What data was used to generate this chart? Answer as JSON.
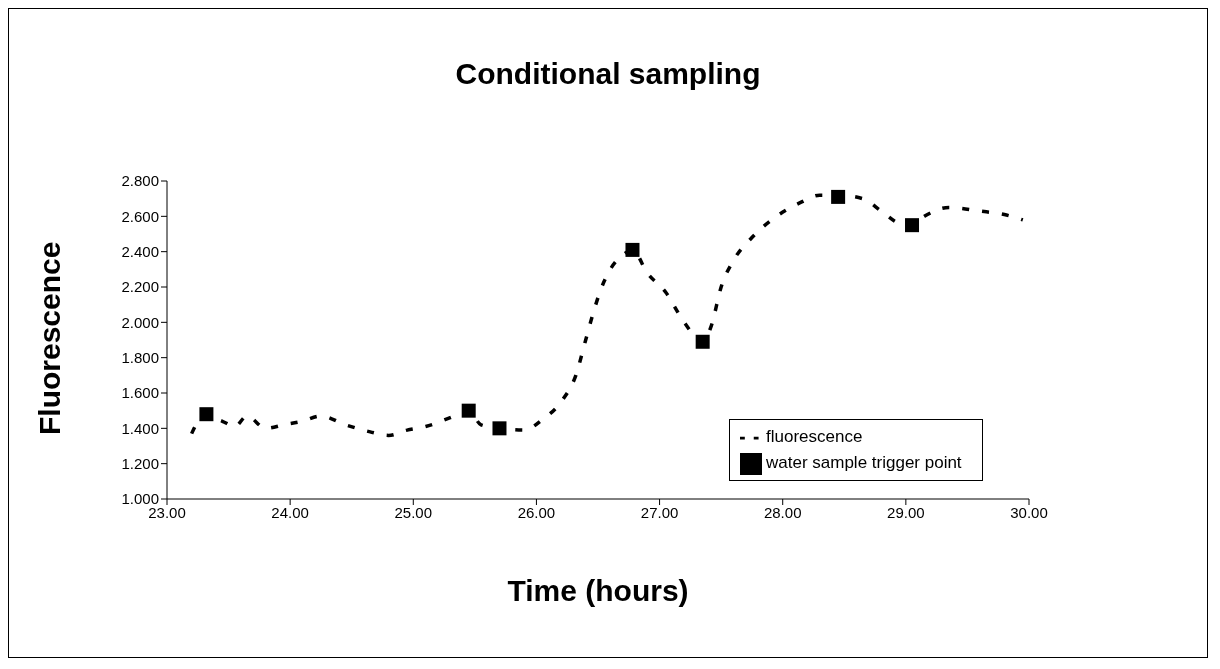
{
  "chart_data": {
    "type": "line",
    "title": "Conditional sampling",
    "xlabel": "Time (hours)",
    "ylabel": "Fluorescence",
    "xlim": [
      23,
      30
    ],
    "xticks": [
      {
        "value": 23,
        "label": "23.00"
      },
      {
        "value": 24,
        "label": "24.00"
      },
      {
        "value": 25,
        "label": "25.00"
      },
      {
        "value": 26,
        "label": "26.00"
      },
      {
        "value": 27,
        "label": "27.00"
      },
      {
        "value": 28,
        "label": "28.00"
      },
      {
        "value": 29,
        "label": "29.00"
      },
      {
        "value": 30,
        "label": "30.00"
      }
    ],
    "ylim": [
      1,
      2.8
    ],
    "yticks": [
      {
        "value": 1,
        "label": "1.000"
      },
      {
        "value": 1.2,
        "label": "1.200"
      },
      {
        "value": 1.4,
        "label": "1.400"
      },
      {
        "value": 1.6,
        "label": "1.600"
      },
      {
        "value": 1.8,
        "label": "1.800"
      },
      {
        "value": 2,
        "label": "2.000"
      },
      {
        "value": 2.2,
        "label": "2.200"
      },
      {
        "value": 2.4,
        "label": "2.400"
      },
      {
        "value": 2.6,
        "label": "2.600"
      },
      {
        "value": 2.8,
        "label": "2.800"
      }
    ],
    "grid": false,
    "legend": "bottom right",
    "series": [
      {
        "name": "fluorescence",
        "color": "#000000",
        "line_style": "dashed",
        "marker": "none",
        "x": [
          23.2,
          23.3,
          23.45,
          23.55,
          23.65,
          23.8,
          23.95,
          24.1,
          24.25,
          24.45,
          24.65,
          24.8,
          24.95,
          25.1,
          25.3,
          25.45,
          25.55,
          25.7,
          25.9,
          26.05,
          26.2,
          26.32,
          26.4,
          26.46,
          26.52,
          26.6,
          26.7,
          26.78,
          26.9,
          27.05,
          27.2,
          27.35,
          27.42,
          27.5,
          27.6,
          27.75,
          27.95,
          28.15,
          28.3,
          28.45,
          28.65,
          28.8,
          28.95,
          29.05,
          29.15,
          29.35,
          29.6,
          29.8,
          29.95
        ],
        "values": [
          1.37,
          1.47,
          1.44,
          1.41,
          1.47,
          1.4,
          1.42,
          1.44,
          1.47,
          1.42,
          1.38,
          1.36,
          1.39,
          1.41,
          1.46,
          1.5,
          1.42,
          1.4,
          1.39,
          1.45,
          1.55,
          1.7,
          1.9,
          2.05,
          2.18,
          2.3,
          2.38,
          2.41,
          2.28,
          2.17,
          2.0,
          1.89,
          1.98,
          2.2,
          2.35,
          2.48,
          2.6,
          2.68,
          2.72,
          2.72,
          2.7,
          2.63,
          2.56,
          2.55,
          2.6,
          2.65,
          2.63,
          2.61,
          2.58
        ]
      },
      {
        "name": "water sample trigger point",
        "type": "scatter",
        "color": "#000000",
        "marker": "square",
        "x": [
          23.32,
          25.45,
          25.7,
          26.78,
          27.35,
          28.45,
          29.05
        ],
        "values": [
          1.48,
          1.5,
          1.4,
          2.41,
          1.89,
          2.71,
          2.55
        ]
      }
    ]
  }
}
